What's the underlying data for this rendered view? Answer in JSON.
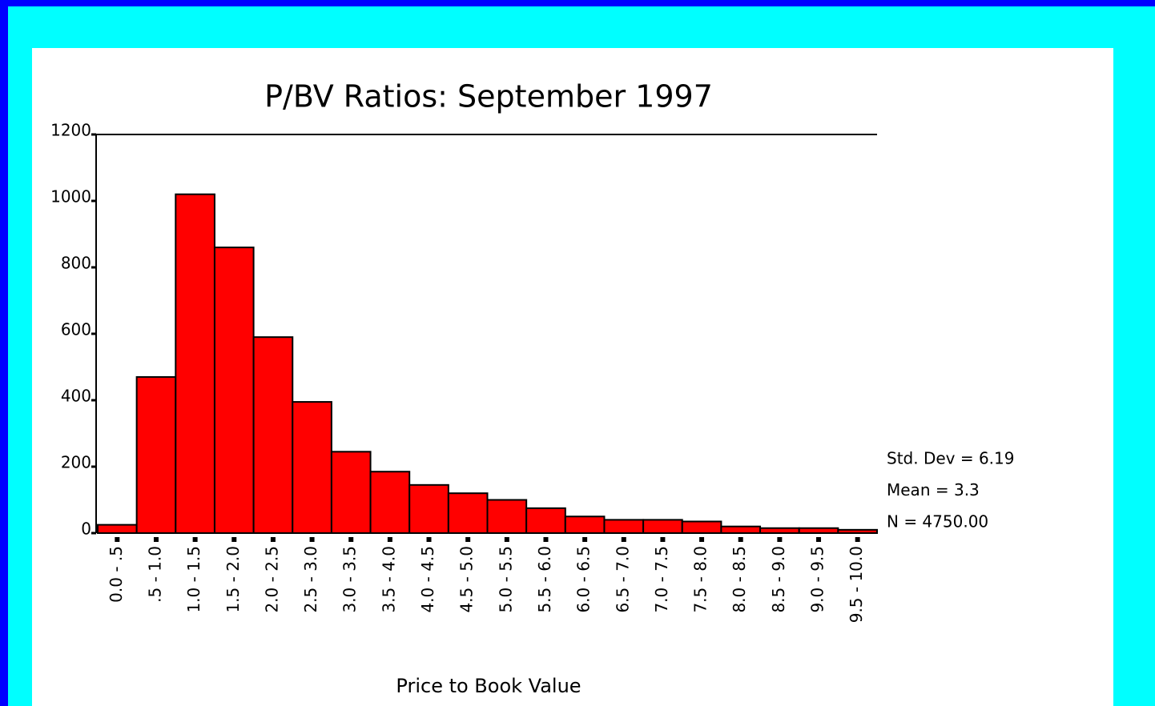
{
  "chart_data": {
    "type": "bar",
    "title": "P/BV Ratios: September 1997",
    "x_label": "Price to  Book Value",
    "categories": [
      "0.0 - .5",
      ".5 - 1.0",
      "1.0 - 1.5",
      "1.5 - 2.0",
      "2.0 - 2.5",
      "2.5 - 3.0",
      "3.0 - 3.5",
      "3.5 - 4.0",
      "4.0 - 4.5",
      "4.5 - 5.0",
      "5.0 - 5.5",
      "5.5 - 6.0",
      "6.0 - 6.5",
      "6.5 - 7.0",
      "7.0 - 7.5",
      "7.5 - 8.0",
      "8.0 - 8.5",
      "8.5 - 9.0",
      "9.0 - 9.5",
      "9.5 - 10.0"
    ],
    "values": [
      25,
      470,
      1020,
      860,
      590,
      395,
      245,
      185,
      145,
      120,
      100,
      75,
      50,
      40,
      40,
      35,
      20,
      15,
      15,
      10
    ],
    "color": "#ff0000",
    "ylim": [
      0,
      1200
    ],
    "yticks": [
      0,
      200,
      400,
      600,
      800,
      1000,
      1200
    ],
    "annotations": [
      "Std. Dev = 6.19",
      "Mean = 3.3",
      "N = 4750.00"
    ]
  }
}
